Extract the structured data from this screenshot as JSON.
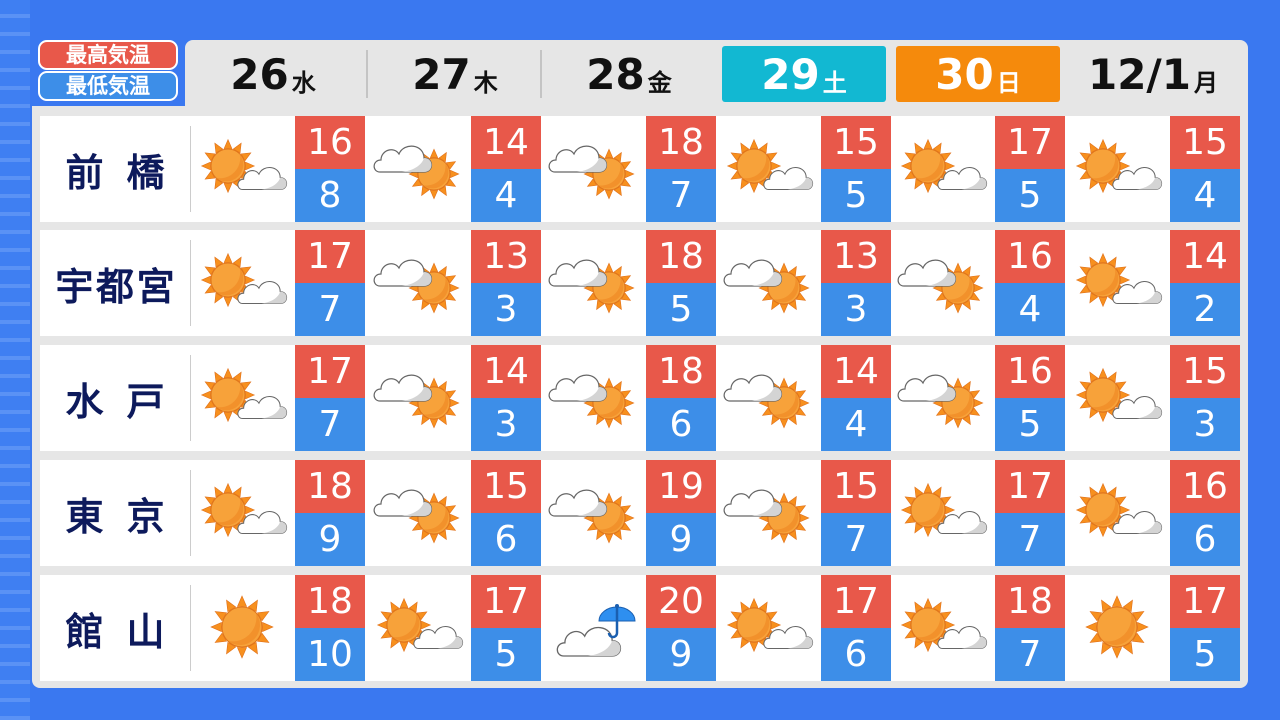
{
  "legend": {
    "high_label": "最高気温",
    "low_label": "最低気温",
    "high_color": "#e8584a",
    "low_color": "#3d8ee8"
  },
  "days": [
    {
      "date": "26",
      "weekday": "水",
      "style": "normal"
    },
    {
      "date": "27",
      "weekday": "木",
      "style": "normal"
    },
    {
      "date": "28",
      "weekday": "金",
      "style": "normal"
    },
    {
      "date": "29",
      "weekday": "土",
      "style": "saturday"
    },
    {
      "date": "30",
      "weekday": "日",
      "style": "sunday"
    },
    {
      "date": "12/1",
      "weekday": "月",
      "style": "normal"
    }
  ],
  "cities": [
    {
      "name": [
        "前",
        "橋"
      ],
      "forecast": [
        {
          "icon": "sun-cloud",
          "high": "16",
          "low": "8"
        },
        {
          "icon": "cloud-sun",
          "high": "14",
          "low": "4"
        },
        {
          "icon": "cloud-sun",
          "high": "18",
          "low": "7"
        },
        {
          "icon": "sun-cloud",
          "high": "15",
          "low": "5"
        },
        {
          "icon": "sun-cloud",
          "high": "17",
          "low": "5"
        },
        {
          "icon": "sun-cloud",
          "high": "15",
          "low": "4"
        }
      ]
    },
    {
      "name": [
        "宇",
        "都",
        "宮"
      ],
      "forecast": [
        {
          "icon": "sun-cloud",
          "high": "17",
          "low": "7"
        },
        {
          "icon": "cloud-sun",
          "high": "13",
          "low": "3"
        },
        {
          "icon": "cloud-sun",
          "high": "18",
          "low": "5"
        },
        {
          "icon": "cloud-sun",
          "high": "13",
          "low": "3"
        },
        {
          "icon": "cloud-sun",
          "high": "16",
          "low": "4"
        },
        {
          "icon": "sun-cloud",
          "high": "14",
          "low": "2"
        }
      ]
    },
    {
      "name": [
        "水",
        "戸"
      ],
      "forecast": [
        {
          "icon": "sun-cloud",
          "high": "17",
          "low": "7"
        },
        {
          "icon": "cloud-sun",
          "high": "14",
          "low": "3"
        },
        {
          "icon": "cloud-sun",
          "high": "18",
          "low": "6"
        },
        {
          "icon": "cloud-sun",
          "high": "14",
          "low": "4"
        },
        {
          "icon": "cloud-sun",
          "high": "16",
          "low": "5"
        },
        {
          "icon": "sun-cloud",
          "high": "15",
          "low": "3"
        }
      ]
    },
    {
      "name": [
        "東",
        "京"
      ],
      "forecast": [
        {
          "icon": "sun-cloud",
          "high": "18",
          "low": "9"
        },
        {
          "icon": "cloud-sun",
          "high": "15",
          "low": "6"
        },
        {
          "icon": "cloud-sun",
          "high": "19",
          "low": "9"
        },
        {
          "icon": "cloud-sun",
          "high": "15",
          "low": "7"
        },
        {
          "icon": "sun-cloud",
          "high": "17",
          "low": "7"
        },
        {
          "icon": "sun-cloud",
          "high": "16",
          "low": "6"
        }
      ]
    },
    {
      "name": [
        "館",
        "山"
      ],
      "forecast": [
        {
          "icon": "sun",
          "high": "18",
          "low": "10"
        },
        {
          "icon": "sun-cloud",
          "high": "17",
          "low": "5"
        },
        {
          "icon": "cloud-umbrella",
          "high": "20",
          "low": "9"
        },
        {
          "icon": "sun-cloud",
          "high": "17",
          "low": "6"
        },
        {
          "icon": "sun-cloud",
          "high": "18",
          "low": "7"
        },
        {
          "icon": "sun",
          "high": "17",
          "low": "5"
        }
      ]
    }
  ]
}
